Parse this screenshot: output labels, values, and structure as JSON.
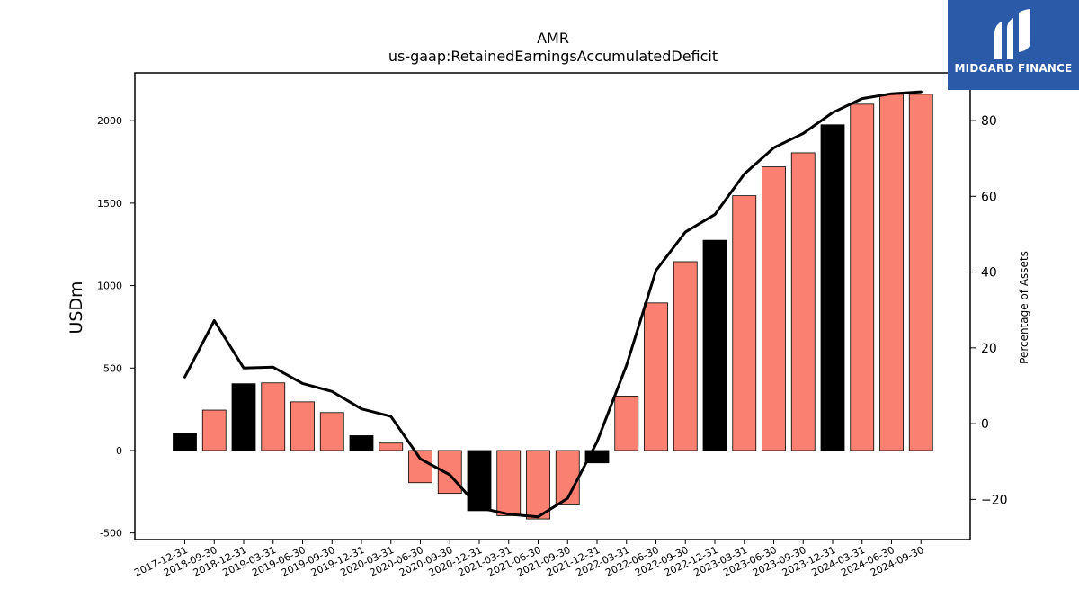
{
  "chart_data": {
    "type": "bar",
    "title": "AMR",
    "subtitle": "us-gaap:RetainedEarningsAccumulatedDeficit",
    "ylabel_left": "USDm",
    "ylabel_right": "Percentage of Assets",
    "ylim_left": [
      -540,
      2290
    ],
    "ylim_right": [
      -30.6,
      92.6
    ],
    "yticks_left": [
      -500,
      0,
      500,
      1000,
      1500,
      2000
    ],
    "yticks_right": [
      -20,
      0,
      20,
      40,
      60,
      80
    ],
    "grid": false,
    "categories": [
      "2017-12-31",
      "2018-09-30",
      "2018-12-31",
      "2019-03-31",
      "2019-06-30",
      "2019-09-30",
      "2019-12-31",
      "2020-03-31",
      "2020-06-30",
      "2020-09-30",
      "2020-12-31",
      "2021-03-31",
      "2021-06-30",
      "2021-09-30",
      "2021-12-31",
      "2022-03-31",
      "2022-06-30",
      "2022-09-30",
      "2022-12-31",
      "2023-03-31",
      "2023-06-30",
      "2023-09-30",
      "2023-12-31",
      "2024-03-31",
      "2024-06-30",
      "2024-09-30"
    ],
    "series": [
      {
        "kind": "bar",
        "axis": "left",
        "values": [
          105,
          245,
          405,
          410,
          295,
          230,
          90,
          45,
          -195,
          -260,
          -365,
          -395,
          -415,
          -330,
          -75,
          330,
          895,
          1145,
          1275,
          1545,
          1720,
          1805,
          1975,
          2100,
          2160,
          2160
        ],
        "colors": [
          "#000000",
          "#fa8072",
          "#000000",
          "#fa8072",
          "#fa8072",
          "#fa8072",
          "#000000",
          "#fa8072",
          "#fa8072",
          "#fa8072",
          "#000000",
          "#fa8072",
          "#fa8072",
          "#fa8072",
          "#000000",
          "#fa8072",
          "#fa8072",
          "#fa8072",
          "#000000",
          "#fa8072",
          "#fa8072",
          "#fa8072",
          "#000000",
          "#fa8072",
          "#fa8072",
          "#fa8072"
        ]
      },
      {
        "kind": "line",
        "axis": "right",
        "color": "#000000",
        "values": [
          12.3,
          27.2,
          14.7,
          14.9,
          10.6,
          8.5,
          3.9,
          1.9,
          -9.3,
          -13.5,
          -22.2,
          -23.9,
          -24.6,
          -19.7,
          -4.8,
          15.4,
          40.4,
          50.6,
          55.2,
          65.9,
          72.8,
          76.6,
          82.1,
          85.8,
          87.1,
          87.6
        ]
      }
    ]
  },
  "logo": {
    "text": "MIDGARD FINANCE",
    "colors": {
      "background": "#2b5aa8",
      "mark": "#ffffff"
    }
  }
}
